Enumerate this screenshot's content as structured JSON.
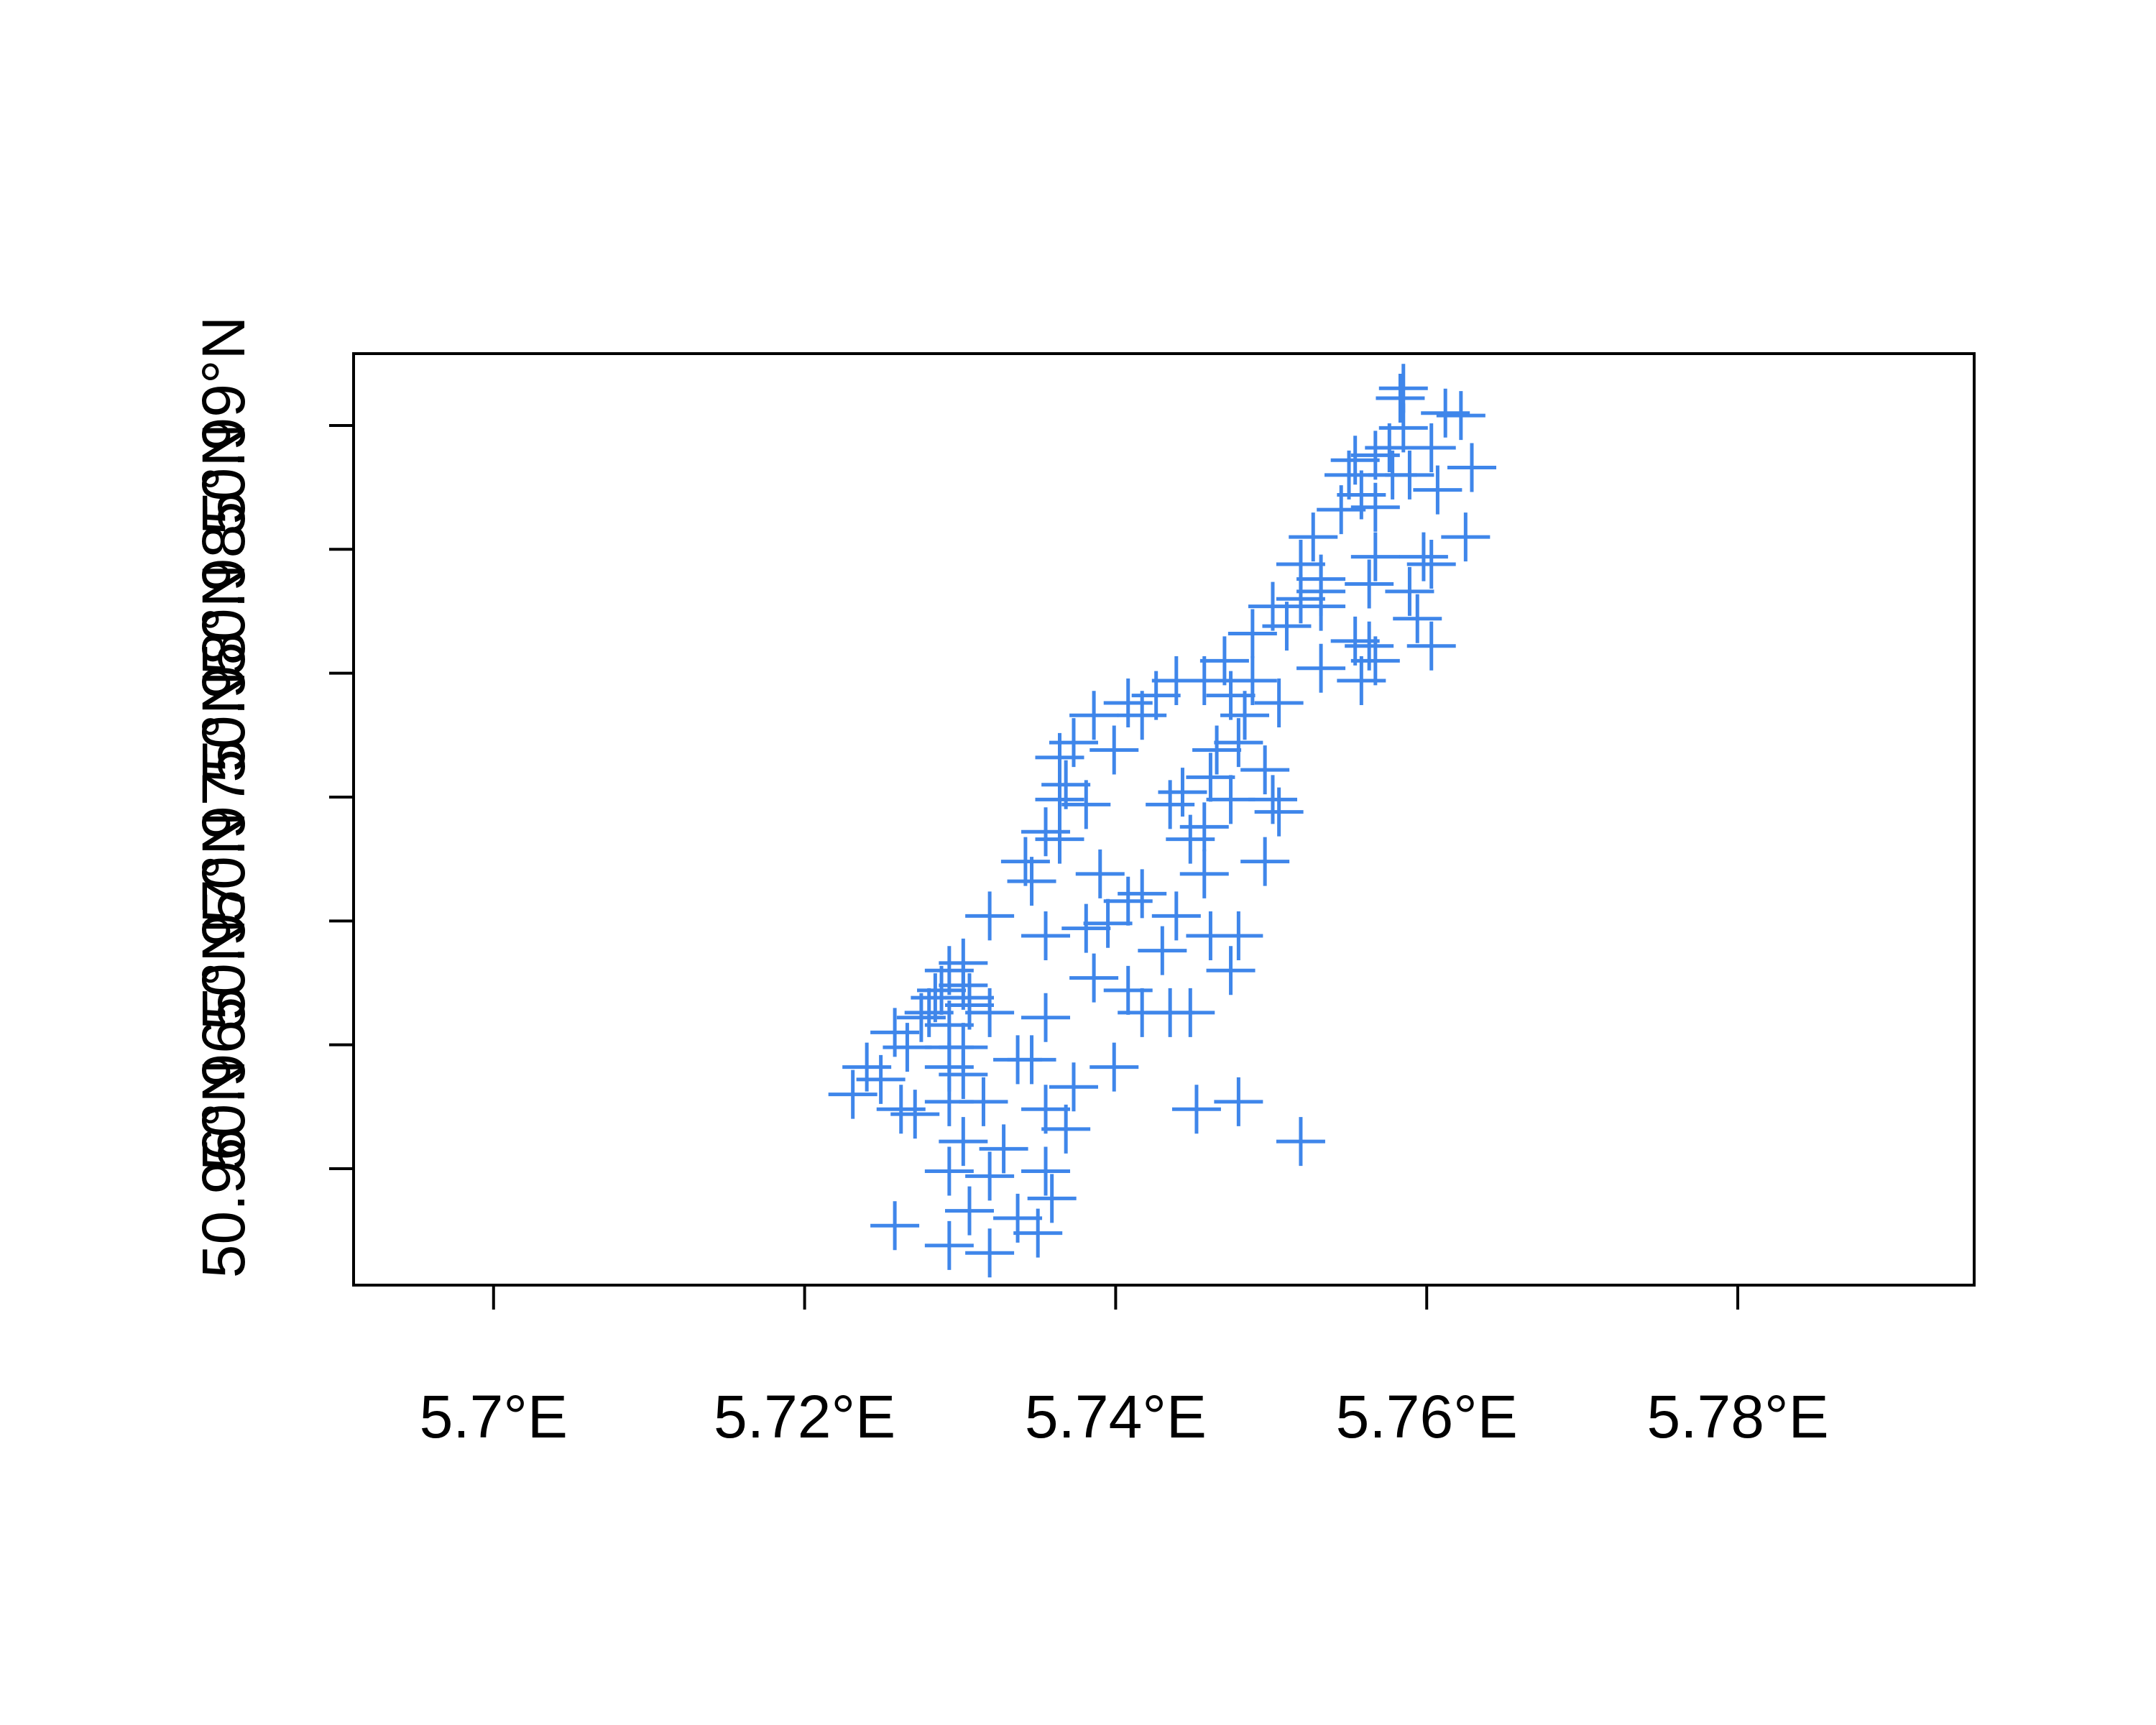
{
  "chart_data": {
    "type": "scatter",
    "marker": "cross",
    "color": "#3f86ea",
    "xlim": [
      5.691,
      5.7952
    ],
    "ylim": [
      50.9553,
      50.9929
    ],
    "xticks": [
      {
        "value": 5.7,
        "label": "5.7°E"
      },
      {
        "value": 5.72,
        "label": "5.72°E"
      },
      {
        "value": 5.74,
        "label": "5.74°E"
      },
      {
        "value": 5.76,
        "label": "5.76°E"
      },
      {
        "value": 5.78,
        "label": "5.78°E"
      }
    ],
    "yticks": [
      {
        "value": 50.96,
        "label": "50.96°N"
      },
      {
        "value": 50.965,
        "label": "50.965°N"
      },
      {
        "value": 50.97,
        "label": "50.97°N"
      },
      {
        "value": 50.975,
        "label": "50.975°N"
      },
      {
        "value": 50.98,
        "label": "50.98°N"
      },
      {
        "value": 50.985,
        "label": "50.985°N"
      },
      {
        "value": 50.99,
        "label": "50.99°N"
      }
    ],
    "x": [
      5.7585,
      5.7583,
      5.7612,
      5.7622,
      5.7576,
      5.7554,
      5.7567,
      5.7603,
      5.7629,
      5.7578,
      5.7589,
      5.7607,
      5.7558,
      5.7545,
      5.7567,
      5.7625,
      5.7527,
      5.7598,
      5.7519,
      5.7567,
      5.7532,
      5.7563,
      5.7589,
      5.7519,
      5.7501,
      5.7532,
      5.7594,
      5.7488,
      5.751,
      5.7554,
      5.7567,
      5.7532,
      5.747,
      5.7488,
      5.7457,
      5.7439,
      5.7505,
      5.7426,
      5.7408,
      5.7483,
      5.7479,
      5.7465,
      5.7417,
      5.7386,
      5.7399,
      5.7373,
      5.7364,
      5.7461,
      5.7496,
      5.7443,
      5.7474,
      5.7501,
      5.7435,
      5.7381,
      5.7364,
      5.7457,
      5.7355,
      5.7364,
      5.7496,
      5.7457,
      5.7342,
      5.7346,
      5.739,
      5.7417,
      5.7408,
      5.7319,
      5.7439,
      5.7461,
      5.7479,
      5.7381,
      5.7355,
      5.7395,
      5.743,
      5.7474,
      5.7386,
      5.7408,
      5.7417,
      5.7435,
      5.7448,
      5.7355,
      5.7293,
      5.7302,
      5.7284,
      5.7275,
      5.7293,
      5.7306,
      5.7319,
      5.7258,
      5.7266,
      5.7302,
      5.7293,
      5.7302,
      5.7346,
      5.7399,
      5.7373,
      5.724,
      5.7231,
      5.7262,
      5.7271,
      5.7293,
      5.7315,
      5.7355,
      5.7452,
      5.7479,
      5.7519,
      5.7368,
      5.7302,
      5.7328,
      5.7355,
      5.7293,
      5.7319,
      5.7359,
      5.7306,
      5.7337,
      5.7258,
      5.7293,
      5.7319,
      5.735,
      5.7306,
      5.728,
      5.7293,
      5.7288,
      5.7302,
      5.7249,
      5.7337,
      5.7368,
      5.7563,
      5.7603,
      5.7558,
      5.7474,
      5.7505,
      5.7448,
      5.7532,
      5.7603,
      5.755,
      5.7585
    ],
    "y": [
      50.9915,
      50.9911,
      50.9905,
      50.9904,
      50.9891,
      50.9886,
      50.9888,
      50.9891,
      50.9883,
      50.988,
      50.988,
      50.9874,
      50.9872,
      50.9866,
      50.9867,
      50.9855,
      50.9855,
      50.9847,
      50.9844,
      50.9847,
      50.9838,
      50.9836,
      50.9833,
      50.983,
      50.9827,
      50.9833,
      50.9822,
      50.9816,
      50.9819,
      50.9813,
      50.9805,
      50.9802,
      50.9805,
      50.9797,
      50.9797,
      50.9797,
      50.9788,
      50.9791,
      50.9788,
      50.9783,
      50.9772,
      50.9769,
      50.9783,
      50.9783,
      50.9769,
      50.9772,
      50.9766,
      50.9758,
      50.9761,
      50.9752,
      50.9749,
      50.9749,
      50.9747,
      50.9747,
      50.9749,
      50.9738,
      50.9736,
      50.9733,
      50.9724,
      50.9719,
      50.9724,
      50.9716,
      50.9719,
      50.9711,
      50.9708,
      50.9702,
      50.9702,
      50.9694,
      50.9694,
      50.9697,
      50.9694,
      50.9699,
      50.9688,
      50.968,
      50.9677,
      50.9672,
      50.9663,
      50.9663,
      50.9663,
      50.9661,
      50.968,
      50.9674,
      50.9669,
      50.9661,
      50.9658,
      50.9666,
      50.9663,
      50.9655,
      50.9649,
      50.9649,
      50.9641,
      50.9638,
      50.9644,
      50.9641,
      50.9633,
      50.9641,
      50.963,
      50.9624,
      50.9622,
      50.9627,
      50.9627,
      50.9624,
      50.9624,
      50.9627,
      50.9611,
      50.9616,
      50.9611,
      50.9608,
      50.9599,
      50.9599,
      50.9597,
      50.9588,
      50.9583,
      50.958,
      50.9577,
      50.9569,
      50.9566,
      50.9574,
      50.9669,
      50.9663,
      50.9649,
      50.9672,
      50.9683,
      50.9636,
      50.9644,
      50.9755,
      50.9811,
      50.9811,
      50.9797,
      50.9791,
      50.9744,
      50.9733,
      50.9827,
      50.9844,
      50.988,
      50.9899
    ]
  }
}
